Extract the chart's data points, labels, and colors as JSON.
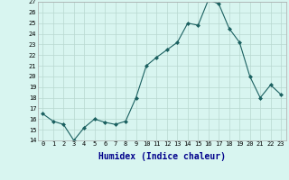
{
  "xlabel": "Humidex (Indice chaleur)",
  "ylabel": "",
  "x": [
    0,
    1,
    2,
    3,
    4,
    5,
    6,
    7,
    8,
    9,
    10,
    11,
    12,
    13,
    14,
    15,
    16,
    17,
    18,
    19,
    20,
    21,
    22,
    23
  ],
  "y": [
    16.5,
    15.8,
    15.5,
    14.0,
    15.2,
    16.0,
    15.7,
    15.5,
    15.8,
    18.0,
    21.0,
    21.8,
    22.5,
    23.2,
    25.0,
    24.8,
    27.2,
    26.8,
    24.5,
    23.2,
    20.0,
    18.0,
    19.2,
    18.3
  ],
  "line_color": "#1a6060",
  "marker": "D",
  "marker_size": 2,
  "bg_color": "#d8f5f0",
  "grid_color": "#b8d8d0",
  "ylim": [
    14,
    27
  ],
  "xlim": [
    -0.5,
    23.5
  ],
  "yticks": [
    14,
    15,
    16,
    17,
    18,
    19,
    20,
    21,
    22,
    23,
    24,
    25,
    26,
    27
  ],
  "xticks": [
    0,
    1,
    2,
    3,
    4,
    5,
    6,
    7,
    8,
    9,
    10,
    11,
    12,
    13,
    14,
    15,
    16,
    17,
    18,
    19,
    20,
    21,
    22,
    23
  ],
  "tick_fontsize": 5,
  "xlabel_fontsize": 7,
  "xlabel_color": "#00008b",
  "line_width": 0.8
}
